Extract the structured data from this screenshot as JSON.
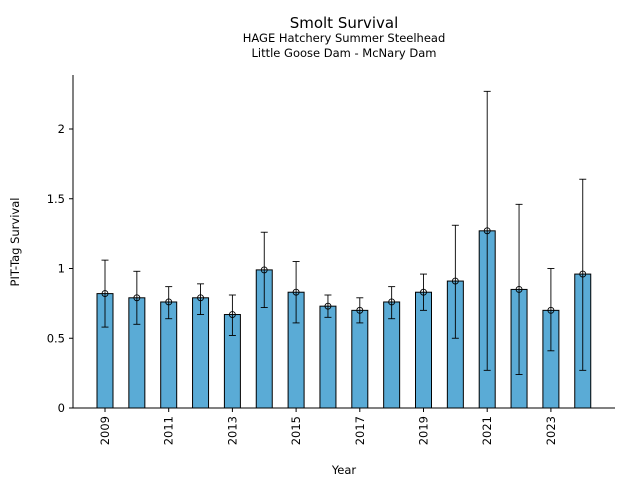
{
  "chart_data": {
    "type": "bar",
    "title": "Smolt Survival",
    "subtitle_lines": [
      "HAGE Hatchery Summer Steelhead",
      "Little Goose Dam - McNary Dam"
    ],
    "xlabel": "Year",
    "ylabel": "PIT-Tag Survival",
    "categories": [
      "2009",
      "2010",
      "2011",
      "2012",
      "2013",
      "2014",
      "2015",
      "2016",
      "2017",
      "2018",
      "2019",
      "2020",
      "2021",
      "2022",
      "2023",
      "2024"
    ],
    "x_tick_labels": [
      "2009",
      "2011",
      "2013",
      "2015",
      "2017",
      "2019",
      "2021",
      "2023"
    ],
    "values": [
      0.82,
      0.79,
      0.76,
      0.79,
      0.67,
      0.99,
      0.83,
      0.73,
      0.7,
      0.76,
      0.83,
      0.91,
      1.27,
      0.85,
      0.7,
      0.96
    ],
    "error_low": [
      0.58,
      0.6,
      0.64,
      0.67,
      0.52,
      0.72,
      0.61,
      0.65,
      0.61,
      0.64,
      0.7,
      0.5,
      0.27,
      0.24,
      0.41,
      0.27
    ],
    "error_high": [
      1.06,
      0.98,
      0.87,
      0.89,
      0.81,
      1.26,
      1.05,
      0.81,
      0.79,
      0.87,
      0.96,
      1.31,
      2.27,
      1.46,
      1.0,
      1.64
    ],
    "y_ticks": [
      0,
      0.5,
      1,
      1.5,
      2
    ],
    "y_tick_labels": [
      "0",
      "0.5",
      "1",
      "1.5",
      "2"
    ],
    "ylim": [
      0,
      2.4
    ],
    "bar_color": "#5aabd6",
    "grid": false
  }
}
